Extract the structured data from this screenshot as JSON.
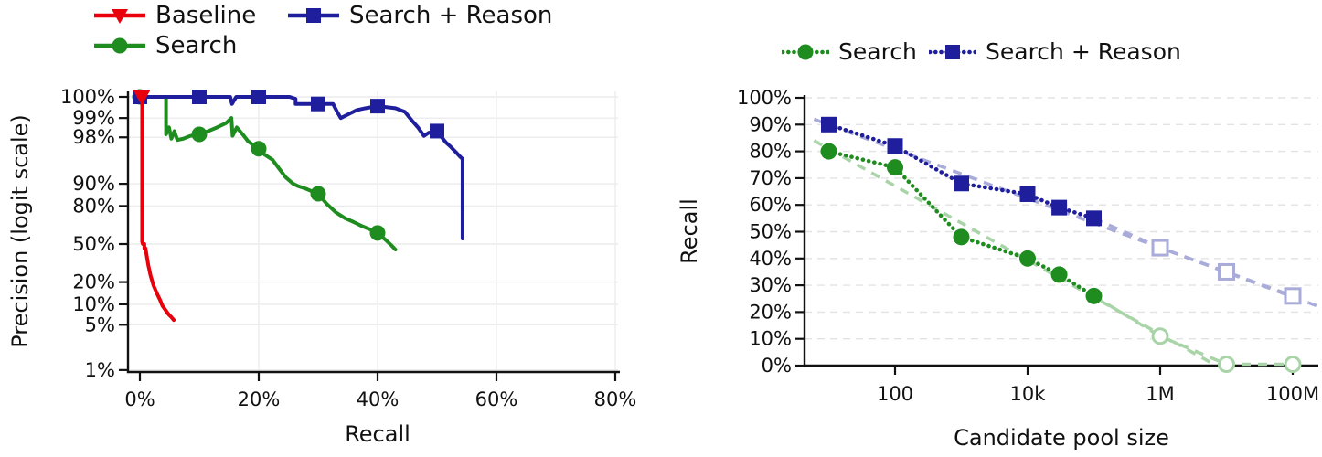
{
  "background": "#ffffff",
  "chart_data": [
    {
      "id": "precision-recall",
      "type": "line",
      "title": "",
      "xlabel": "Recall",
      "ylabel": "Precision (logit scale)",
      "x_scale": "linear-percent",
      "y_scale": "logit-percent",
      "x_range": [
        0,
        80
      ],
      "y_range": [
        1,
        100
      ],
      "grid": "on",
      "legend_position": "above-left",
      "x_ticks": [
        {
          "value": 0,
          "label": "0%"
        },
        {
          "value": 20,
          "label": "20%"
        },
        {
          "value": 40,
          "label": "40%"
        },
        {
          "value": 60,
          "label": "60%"
        },
        {
          "value": 80,
          "label": "80%"
        }
      ],
      "y_ticks": [
        {
          "value": 100,
          "label": "100%"
        },
        {
          "value": 99,
          "label": "99%"
        },
        {
          "value": 98,
          "label": "98%"
        },
        {
          "value": 90,
          "label": "90%"
        },
        {
          "value": 80,
          "label": "80%"
        },
        {
          "value": 50,
          "label": "50%"
        },
        {
          "value": 20,
          "label": "20%"
        },
        {
          "value": 10,
          "label": "10%"
        },
        {
          "value": 5,
          "label": "5%"
        },
        {
          "value": 1,
          "label": "1%"
        }
      ],
      "series": [
        {
          "name": "Search",
          "color": "#1e8c1e",
          "marker": "circle",
          "line_style": "solid",
          "line": [
            [
              0,
              100
            ],
            [
              4.4,
              100
            ],
            [
              4.4,
              98.2
            ],
            [
              4.9,
              98.6
            ],
            [
              5.3,
              97.9
            ],
            [
              5.8,
              98.4
            ],
            [
              6.3,
              97.8
            ],
            [
              7.3,
              97.9
            ],
            [
              8.5,
              98.1
            ],
            [
              10,
              98.2
            ],
            [
              11.5,
              98.4
            ],
            [
              13,
              98.6
            ],
            [
              14.5,
              98.8
            ],
            [
              15.4,
              99.0
            ],
            [
              15.6,
              98.1
            ],
            [
              16.3,
              98.6
            ],
            [
              17.3,
              98.2
            ],
            [
              18.2,
              97.7
            ],
            [
              19.2,
              97.3
            ],
            [
              20,
              97.0
            ],
            [
              21,
              96.3
            ],
            [
              22.3,
              95.6
            ],
            [
              23.3,
              94.2
            ],
            [
              24.5,
              92.0
            ],
            [
              25.8,
              90.0
            ],
            [
              26.5,
              89.3
            ],
            [
              28,
              88.2
            ],
            [
              29.2,
              87.0
            ],
            [
              30,
              86.2
            ],
            [
              31.5,
              81.0
            ],
            [
              33,
              76.0
            ],
            [
              34.5,
              72.0
            ],
            [
              36,
              69.0
            ],
            [
              37.5,
              65.5
            ],
            [
              39,
              62.5
            ],
            [
              40,
              60.0
            ],
            [
              41.3,
              54.0
            ],
            [
              42.3,
              49.0
            ],
            [
              43,
              45.0
            ]
          ],
          "markers": [
            [
              0,
              100
            ],
            [
              10,
              98.2
            ],
            [
              20,
              97.0
            ],
            [
              30,
              86.2
            ],
            [
              40,
              60.0
            ]
          ]
        },
        {
          "name": "Search + Reason",
          "color": "#1f1f9e",
          "marker": "square",
          "line_style": "solid",
          "line": [
            [
              0,
              100
            ],
            [
              15.2,
              100
            ],
            [
              15.5,
              99.4
            ],
            [
              16.2,
              99.6
            ],
            [
              17.2,
              100
            ],
            [
              25.2,
              100
            ],
            [
              25.2,
              99.6
            ],
            [
              26.2,
              99.5
            ],
            [
              26.2,
              99.4
            ],
            [
              32.5,
              99.4
            ],
            [
              33.2,
              99.2
            ],
            [
              33.8,
              99.0
            ],
            [
              34.8,
              99.1
            ],
            [
              36.5,
              99.25
            ],
            [
              38,
              99.3
            ],
            [
              40,
              99.35
            ],
            [
              43,
              99.3
            ],
            [
              44.6,
              99.2
            ],
            [
              45.8,
              98.9
            ],
            [
              46.8,
              98.6
            ],
            [
              47.8,
              98.1
            ],
            [
              48.6,
              98.3
            ],
            [
              49.4,
              98.35
            ],
            [
              50,
              98.4
            ],
            [
              50.8,
              98.0
            ],
            [
              51.5,
              97.6
            ],
            [
              52.3,
              97.2
            ],
            [
              53.2,
              96.6
            ],
            [
              53.8,
              96.1
            ],
            [
              54.3,
              95.7
            ],
            [
              54.3,
              55.0
            ]
          ],
          "markers": [
            [
              0,
              100
            ],
            [
              10,
              100
            ],
            [
              20,
              100
            ],
            [
              30,
              99.4
            ],
            [
              40,
              99.35
            ],
            [
              50,
              98.4
            ]
          ]
        },
        {
          "name": "Baseline",
          "color": "#e8000b",
          "marker": "triangle-down",
          "line_style": "solid",
          "line": [
            [
              0.28,
              100
            ],
            [
              0.38,
              100
            ],
            [
              0.38,
              52
            ],
            [
              0.5,
              50
            ],
            [
              0.75,
              50
            ],
            [
              0.75,
              46
            ],
            [
              0.95,
              46
            ],
            [
              1.1,
              41
            ],
            [
              1.4,
              32
            ],
            [
              1.8,
              24
            ],
            [
              2.3,
              18
            ],
            [
              2.9,
              14
            ],
            [
              3.4,
              11.5
            ],
            [
              3.8,
              9.5
            ],
            [
              4.3,
              8.3
            ],
            [
              4.8,
              7.2
            ],
            [
              5.3,
              6.5
            ],
            [
              5.7,
              5.9
            ]
          ],
          "markers": [
            [
              0.3,
              100
            ]
          ]
        }
      ],
      "legend_order": [
        "Baseline",
        "Search",
        "Search + Reason"
      ]
    },
    {
      "id": "recall-vs-pool-size",
      "type": "line",
      "title": "",
      "xlabel": "Candidate pool size",
      "ylabel": "Recall",
      "x_scale": "log",
      "y_scale": "linear-percent",
      "x_range": [
        4,
        230000000
      ],
      "y_range": [
        0,
        100
      ],
      "grid": "dashed-horizontal",
      "legend_position": "above-center",
      "x_ticks": [
        {
          "value": 100,
          "label": "100"
        },
        {
          "value": 10000,
          "label": "10k"
        },
        {
          "value": 1000000,
          "label": "1M"
        },
        {
          "value": 100000000,
          "label": "100M"
        }
      ],
      "y_ticks": [
        {
          "value": 100,
          "label": "100%"
        },
        {
          "value": 90,
          "label": "90%"
        },
        {
          "value": 80,
          "label": "80%"
        },
        {
          "value": 70,
          "label": "70%"
        },
        {
          "value": 60,
          "label": "60%"
        },
        {
          "value": 50,
          "label": "50%"
        },
        {
          "value": 40,
          "label": "40%"
        },
        {
          "value": 30,
          "label": "30%"
        },
        {
          "value": 20,
          "label": "20%"
        },
        {
          "value": 10,
          "label": "10%"
        },
        {
          "value": 0,
          "label": "0%"
        }
      ],
      "series": [
        {
          "name": "Search",
          "color": "#1e8c1e",
          "light_color": "#a8d4a8",
          "marker": "circle",
          "line_style": "dotted",
          "x": [
            10,
            100,
            1000,
            10000,
            30000,
            100000
          ],
          "y": [
            80,
            74,
            48,
            40,
            34,
            26
          ],
          "extrapolated": {
            "x": [
              1000000,
              10000000,
              100000000
            ],
            "y": [
              11,
              0.5,
              0.5
            ],
            "marker": "open-circle",
            "line_style": "dashed"
          },
          "trend": [
            [
              6,
              84
            ],
            [
              7000000,
              0
            ]
          ]
        },
        {
          "name": "Search + Reason",
          "color": "#1f1f9e",
          "light_color": "#a9abd8",
          "marker": "square",
          "line_style": "dotted",
          "x": [
            10,
            100,
            1000,
            10000,
            30000,
            100000
          ],
          "y": [
            90,
            82,
            68,
            64,
            59,
            55
          ],
          "extrapolated": {
            "x": [
              1000000,
              10000000,
              100000000
            ],
            "y": [
              44,
              35,
              26
            ],
            "marker": "open-square",
            "line_style": "dashed"
          },
          "trend": [
            [
              6,
              92
            ],
            [
              250000000,
              22
            ]
          ]
        }
      ],
      "legend_order": [
        "Search",
        "Search + Reason"
      ]
    }
  ]
}
